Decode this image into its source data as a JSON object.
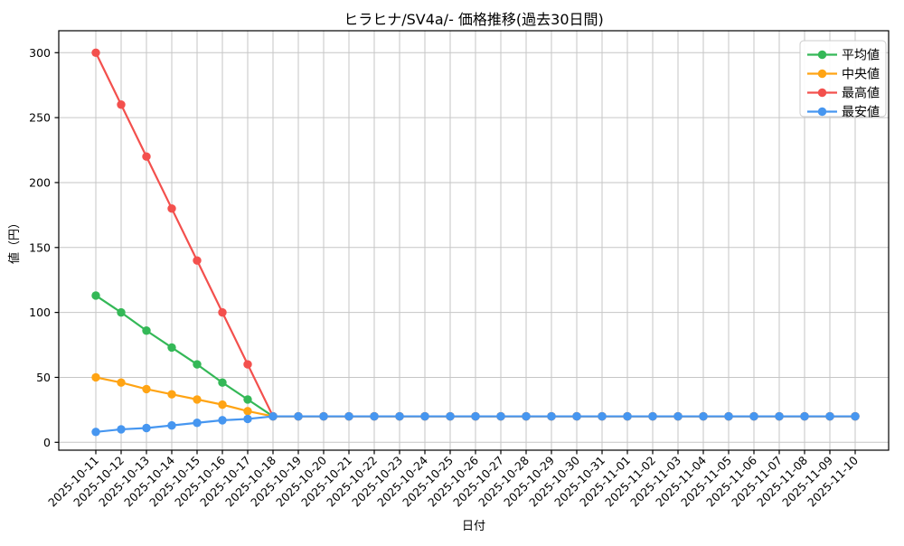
{
  "chart_data": {
    "type": "line",
    "title": "ヒラヒナ/SV4a/- 価格推移(過去30日間)",
    "xlabel": "日付",
    "ylabel": "値（円）",
    "grid": true,
    "legend_position": "upper right",
    "ylim": [
      -6,
      317
    ],
    "yticks": [
      0,
      50,
      100,
      150,
      200,
      250,
      300
    ],
    "categories": [
      "2025-10-11",
      "2025-10-12",
      "2025-10-13",
      "2025-10-14",
      "2025-10-15",
      "2025-10-16",
      "2025-10-17",
      "2025-10-18",
      "2025-10-19",
      "2025-10-20",
      "2025-10-21",
      "2025-10-22",
      "2025-10-23",
      "2025-10-24",
      "2025-10-25",
      "2025-10-26",
      "2025-10-27",
      "2025-10-28",
      "2025-10-29",
      "2025-10-30",
      "2025-10-31",
      "2025-11-01",
      "2025-11-02",
      "2025-11-03",
      "2025-11-04",
      "2025-11-05",
      "2025-11-06",
      "2025-11-07",
      "2025-11-08",
      "2025-11-09",
      "2025-11-10"
    ],
    "series": [
      {
        "key": "average",
        "name": "平均値",
        "color": "#34b857",
        "values": [
          113,
          100,
          86,
          73,
          60,
          46,
          33,
          20,
          20,
          20,
          20,
          20,
          20,
          20,
          20,
          20,
          20,
          20,
          20,
          20,
          20,
          20,
          20,
          20,
          20,
          20,
          20,
          20,
          20,
          20,
          20
        ]
      },
      {
        "key": "median",
        "name": "中央値",
        "color": "#ffa414",
        "values": [
          50,
          46,
          41,
          37,
          33,
          29,
          24,
          20,
          20,
          20,
          20,
          20,
          20,
          20,
          20,
          20,
          20,
          20,
          20,
          20,
          20,
          20,
          20,
          20,
          20,
          20,
          20,
          20,
          20,
          20,
          20
        ]
      },
      {
        "key": "highest",
        "name": "最高値",
        "color": "#f3504d",
        "values": [
          300,
          260,
          220,
          180,
          140,
          100,
          60,
          20,
          20,
          20,
          20,
          20,
          20,
          20,
          20,
          20,
          20,
          20,
          20,
          20,
          20,
          20,
          20,
          20,
          20,
          20,
          20,
          20,
          20,
          20,
          20
        ]
      },
      {
        "key": "lowest",
        "name": "最安値",
        "color": "#4696f0",
        "values": [
          8,
          10,
          11,
          13,
          15,
          17,
          18,
          20,
          20,
          20,
          20,
          20,
          20,
          20,
          20,
          20,
          20,
          20,
          20,
          20,
          20,
          20,
          20,
          20,
          20,
          20,
          20,
          20,
          20,
          20,
          20
        ]
      }
    ],
    "grid_color": "#c6c6c6",
    "spine_color": "#000000",
    "legend_border_color": "#cccccc"
  }
}
